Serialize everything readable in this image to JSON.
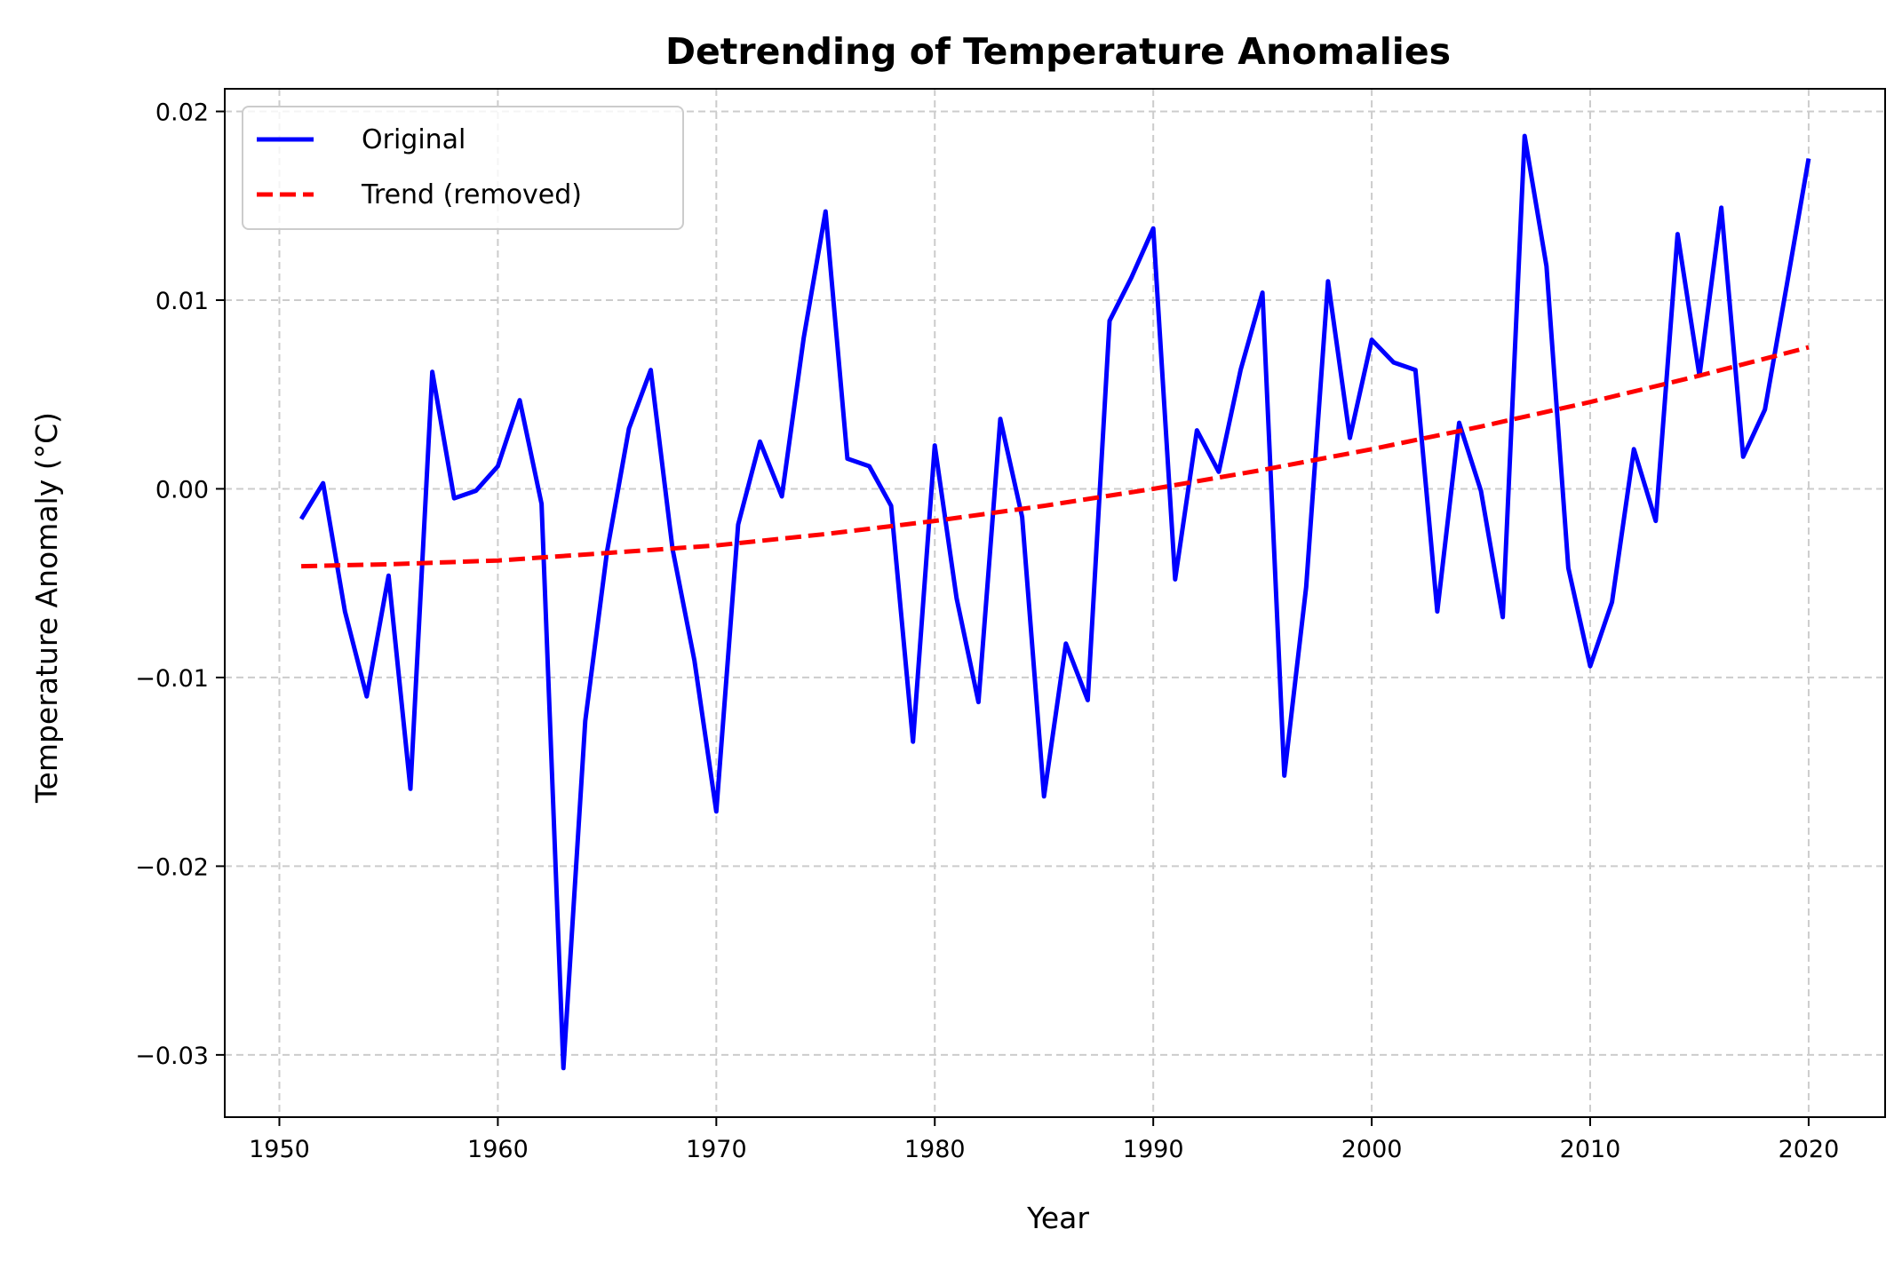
{
  "chart_data": {
    "type": "line",
    "title": "Detrending of Temperature Anomalies",
    "xlabel": "Year",
    "ylabel": "Temperature Anomaly (°C)",
    "xlim": [
      1947.5,
      2023.5
    ],
    "ylim": [
      -0.0333,
      0.0212
    ],
    "xticks": [
      1950,
      1960,
      1970,
      1980,
      1990,
      2000,
      2010,
      2020
    ],
    "xtick_labels": [
      "1950",
      "1960",
      "1970",
      "1980",
      "1990",
      "2000",
      "2010",
      "2020"
    ],
    "yticks": [
      -0.03,
      -0.02,
      -0.01,
      0.0,
      0.01,
      0.02
    ],
    "ytick_labels": [
      "−0.03",
      "−0.02",
      "−0.01",
      "0.00",
      "0.01",
      "0.02"
    ],
    "grid": true,
    "legend_position": "upper-left",
    "colors": {
      "original": "#0000ff",
      "trend": "#ff0000"
    },
    "series": [
      {
        "name": "Original",
        "style": "solid",
        "x": [
          1951,
          1952,
          1953,
          1954,
          1955,
          1956,
          1957,
          1958,
          1959,
          1960,
          1961,
          1962,
          1963,
          1964,
          1965,
          1966,
          1967,
          1968,
          1969,
          1970,
          1971,
          1972,
          1973,
          1974,
          1975,
          1976,
          1977,
          1978,
          1979,
          1980,
          1981,
          1982,
          1983,
          1984,
          1985,
          1986,
          1987,
          1988,
          1989,
          1990,
          1991,
          1992,
          1993,
          1994,
          1995,
          1996,
          1997,
          1998,
          1999,
          2000,
          2001,
          2002,
          2003,
          2004,
          2005,
          2006,
          2007,
          2008,
          2009,
          2010,
          2011,
          2012,
          2013,
          2014,
          2015,
          2016,
          2017,
          2018,
          2019,
          2020
        ],
        "y": [
          -0.0016,
          0.0003,
          -0.0065,
          -0.011,
          -0.0046,
          -0.0159,
          0.0062,
          -0.0005,
          -0.0001,
          0.0012,
          0.0047,
          -0.0008,
          -0.0307,
          -0.0123,
          -0.0033,
          0.0032,
          0.0063,
          -0.0032,
          -0.0091,
          -0.0171,
          -0.0019,
          0.0025,
          -0.0004,
          0.008,
          0.0147,
          0.0016,
          0.0012,
          -0.0009,
          -0.0134,
          0.0023,
          -0.0058,
          -0.0113,
          0.0037,
          -0.0015,
          -0.0163,
          -0.0082,
          -0.0112,
          0.0089,
          0.0112,
          0.0138,
          -0.0048,
          0.0031,
          0.0009,
          0.0063,
          0.0104,
          -0.0152,
          -0.0052,
          0.011,
          0.0027,
          0.0079,
          0.0067,
          0.0063,
          -0.0065,
          0.0035,
          -0.0001,
          -0.0068,
          0.0187,
          0.0118,
          -0.0042,
          -0.0094,
          -0.006,
          0.0021,
          -0.0017,
          0.0135,
          0.006,
          0.0149,
          0.0017,
          0.0042,
          0.0108,
          0.0175
        ]
      },
      {
        "name": "Trend (removed)",
        "style": "dashed",
        "x": [
          1951,
          1955,
          1960,
          1965,
          1970,
          1975,
          1980,
          1985,
          1990,
          1995,
          2000,
          2005,
          2010,
          2015,
          2020
        ],
        "y": [
          -0.0041,
          -0.004,
          -0.0038,
          -0.0034,
          -0.003,
          -0.0024,
          -0.0017,
          -0.0009,
          0.0,
          0.001,
          0.0021,
          0.0033,
          0.0046,
          0.006,
          0.0075
        ]
      }
    ]
  }
}
